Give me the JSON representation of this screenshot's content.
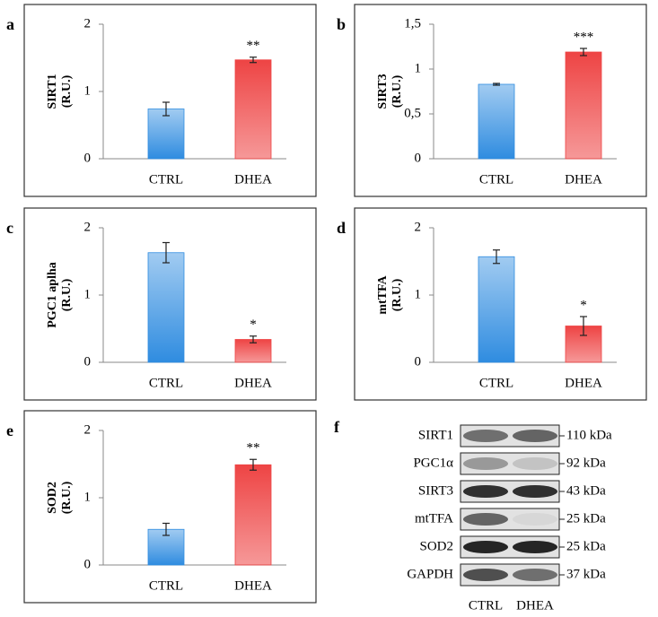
{
  "chart_data": [
    {
      "type": "bar",
      "panel": "a",
      "ylabel": "SIRT1",
      "yunit": "(R.U.)",
      "categories": [
        "CTRL",
        "DHEA"
      ],
      "values": [
        0.74,
        1.47
      ],
      "errors": [
        0.1,
        0.04
      ],
      "colors": [
        "#2f8ce0",
        "#ee4444"
      ],
      "significance": [
        null,
        "**"
      ],
      "ylim": [
        0,
        2
      ],
      "yticks": [
        0,
        1,
        2
      ]
    },
    {
      "type": "bar",
      "panel": "b",
      "ylabel": "SIRT3",
      "yunit": "(R.U.)",
      "categories": [
        "CTRL",
        "DHEA"
      ],
      "values": [
        0.83,
        1.19
      ],
      "errors": [
        0.01,
        0.04
      ],
      "colors": [
        "#2f8ce0",
        "#ee4444"
      ],
      "significance": [
        null,
        "***"
      ],
      "ylim": [
        0,
        1.5
      ],
      "yticks": [
        0,
        {
          "value": 0.5,
          "label": "0,5"
        },
        1,
        {
          "value": 1.5,
          "label": "1,5"
        }
      ]
    },
    {
      "type": "bar",
      "panel": "c",
      "ylabel": "PGC1 aplha",
      "yunit": "(R.U.)",
      "categories": [
        "CTRL",
        "DHEA"
      ],
      "values": [
        1.63,
        0.34
      ],
      "errors": [
        0.15,
        0.05
      ],
      "colors": [
        "#2f8ce0",
        "#ee4444"
      ],
      "significance": [
        null,
        "*"
      ],
      "ylim": [
        0,
        2
      ],
      "yticks": [
        0,
        1,
        2
      ]
    },
    {
      "type": "bar",
      "panel": "d",
      "ylabel": "mtTFA",
      "yunit": "(R.U.)",
      "categories": [
        "CTRL",
        "DHEA"
      ],
      "values": [
        1.57,
        0.54
      ],
      "errors": [
        0.1,
        0.14
      ],
      "colors": [
        "#2f8ce0",
        "#ee4444"
      ],
      "significance": [
        null,
        "*"
      ],
      "ylim": [
        0,
        2
      ],
      "yticks": [
        0,
        1,
        2
      ]
    },
    {
      "type": "bar",
      "panel": "e",
      "ylabel": "SOD2",
      "yunit": "(R.U.)",
      "categories": [
        "CTRL",
        "DHEA"
      ],
      "values": [
        0.53,
        1.49
      ],
      "errors": [
        0.09,
        0.08
      ],
      "colors": [
        "#2f8ce0",
        "#ee4444"
      ],
      "significance": [
        null,
        "**"
      ],
      "ylim": [
        0,
        2
      ],
      "yticks": [
        0,
        1,
        2
      ]
    }
  ],
  "blot": {
    "panel": "f",
    "proteins": [
      "SIRT1",
      "PGC1α",
      "SIRT3",
      "mtTFA",
      "SOD2",
      "GAPDH"
    ],
    "sizes": [
      "110 kDa",
      "92 kDa",
      "43 kDa",
      "25 kDa",
      "25 kDa",
      "37 kDa"
    ],
    "lanes": [
      "CTRL",
      "DHEA"
    ]
  }
}
